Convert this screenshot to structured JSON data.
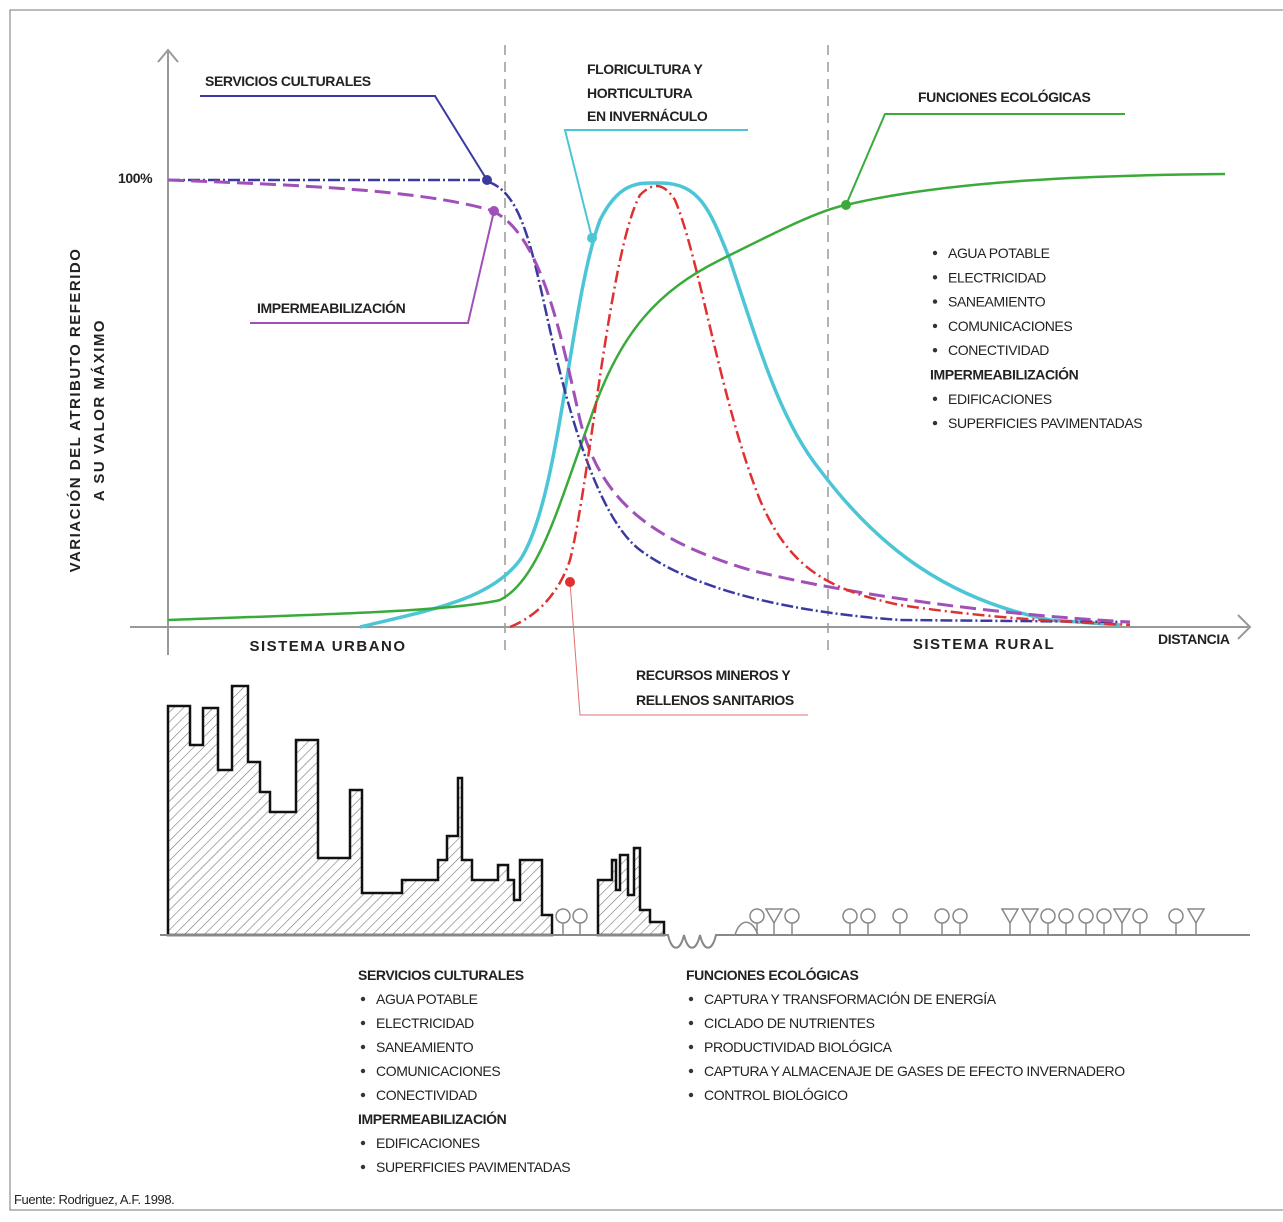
{
  "axis": {
    "y_label": [
      "VARIACIÓN DEL ATRIBUTO REFERIDO",
      "A SU VALOR MÁXIMO"
    ],
    "y_max_label": "100%",
    "x_label": "DISTANCIA"
  },
  "zones": [
    "SISTEMA URBANO",
    "SISTEMA RURAL"
  ],
  "curve_labels": [
    {
      "lines": [
        "SERVICIOS CULTURALES"
      ]
    },
    {
      "lines": [
        "IMPERMEABILIZACIÓN"
      ]
    },
    {
      "lines": [
        "FLORICULTURA Y",
        "HORTICULTURA",
        "EN INVERNÁCULO"
      ]
    },
    {
      "lines": [
        "FUNCIONES ECOLÓGICAS"
      ]
    },
    {
      "lines": [
        "RECURSOS MINEROS Y",
        "RELLENOS SANITARIOS"
      ]
    }
  ],
  "side_list": {
    "groups": [
      {
        "items": [
          "AGUA POTABLE",
          "ELECTRICIDAD",
          "SANEAMIENTO",
          "COMUNICACIONES",
          "CONECTIVIDAD"
        ]
      },
      {
        "title": "IMPERMEABILIZACIÓN",
        "items": [
          "EDIFICACIONES",
          "SUPERFICIES PAVIMENTADAS"
        ]
      }
    ]
  },
  "bottom_left": {
    "groups": [
      {
        "title": "SERVICIOS CULTURALES",
        "items": [
          "AGUA POTABLE",
          "ELECTRICIDAD",
          "SANEAMIENTO",
          "COMUNICACIONES",
          "CONECTIVIDAD"
        ]
      },
      {
        "title": "IMPERMEABILIZACIÓN",
        "items": [
          "EDIFICACIONES",
          "SUPERFICIES PAVIMENTADAS"
        ]
      }
    ]
  },
  "bottom_right": {
    "groups": [
      {
        "title": "FUNCIONES ECOLÓGICAS",
        "items": [
          "CAPTURA Y TRANSFORMACIÓN DE ENERGÍA",
          "CICLADO DE NUTRIENTES",
          "PRODUCTIVIDAD BIOLÓGICA",
          "CAPTURA Y ALMACENAJE DE GASES DE EFECTO INVERNADERO",
          "CONTROL BIOLÓGICO"
        ]
      }
    ]
  },
  "source": "Fuente: Rodriguez, A.F. 1998."
}
